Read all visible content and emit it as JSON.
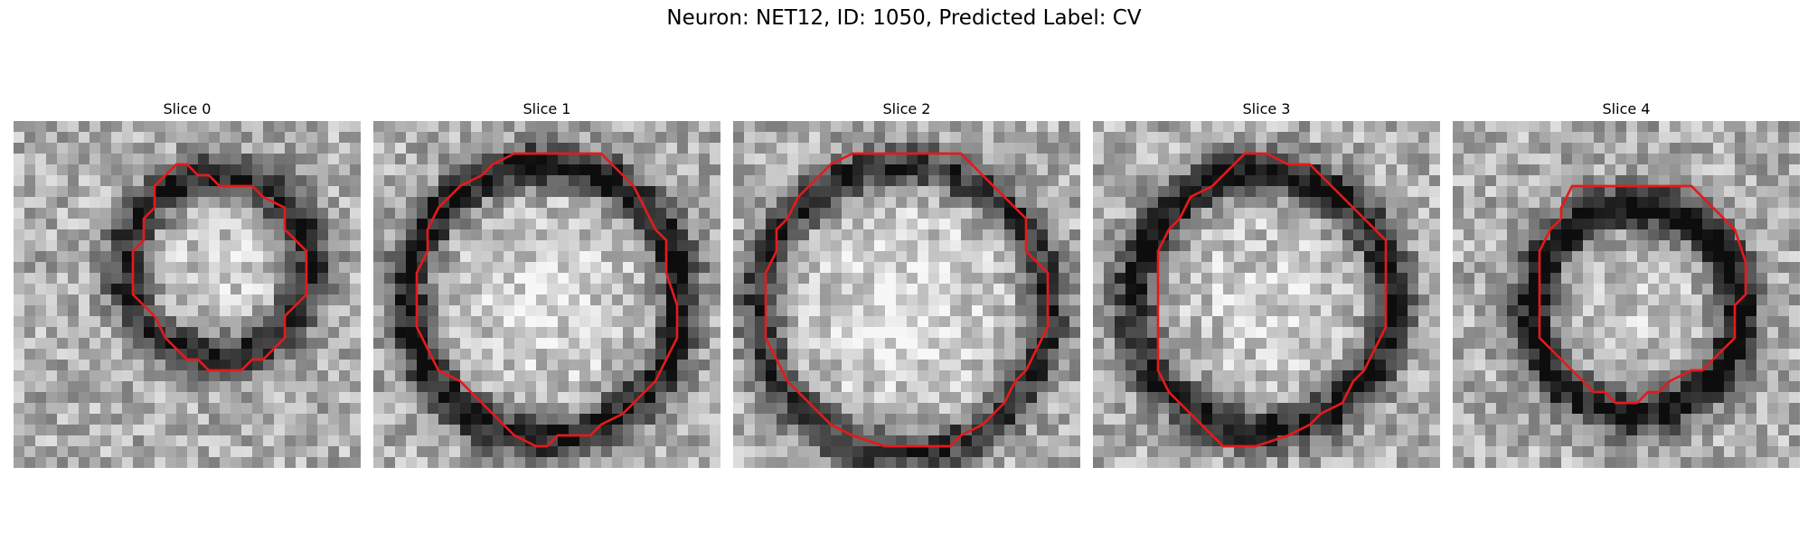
{
  "figure": {
    "title": "Neuron: NET12, ID: 1050, Predicted Label: CV"
  },
  "colors": {
    "contour": "#e41a1c"
  },
  "panels": [
    {
      "title": "Slice 0",
      "seed": 11,
      "ring": {
        "dark": 0.55,
        "light": 0.15
      }
    },
    {
      "title": "Slice 1",
      "seed": 23,
      "ring": {
        "dark": 0.6,
        "light": 0.2
      }
    },
    {
      "title": "Slice 2",
      "seed": 37,
      "ring": {
        "dark": 0.5,
        "light": 0.25
      }
    },
    {
      "title": "Slice 3",
      "seed": 41,
      "ring": {
        "dark": 0.6,
        "light": 0.15
      }
    },
    {
      "title": "Slice 4",
      "seed": 59,
      "ring": {
        "dark": 0.65,
        "light": 0.1
      }
    }
  ]
}
